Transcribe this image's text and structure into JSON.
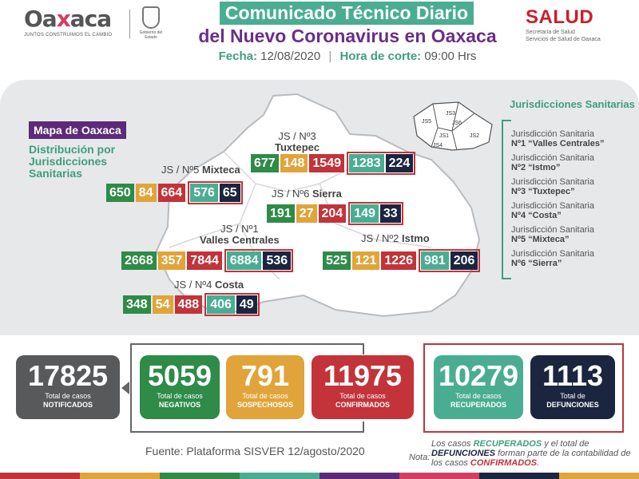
{
  "header": {
    "logo_word_pre": "Oa",
    "logo_word_x": "x",
    "logo_word_post": "aca",
    "logo_slogan": "JUNTOS CONSTRUIMOS EL CAMBIO",
    "seal_text": "Gobierno del Estado",
    "title_line1": "Comunicado Técnico Diario",
    "title_line2": "del Nuevo Coronavirus en Oaxaca",
    "date_label": "Fecha:",
    "date_value": "12/08/2020",
    "cut_label": "Hora de corte:",
    "cut_value": "09:00 Hrs",
    "salud_word": "SALUD",
    "salud_sub1": "Secretaría de Salud",
    "salud_sub2": "Servicios de Salud de Oaxaca"
  },
  "map": {
    "label": "Mapa de Oaxaca",
    "subtitle": "Distribución por Jurisdicciones Sanitarias",
    "mini_labels": [
      "JS5",
      "JS3",
      "JS6",
      "JS1",
      "JS4",
      "JS2"
    ]
  },
  "jurisdictions": {
    "title": "Jurisdicciones Sanitarias",
    "items": [
      {
        "prefix": "Jurisdicción Sanitaria",
        "name": "Nº1 “Valles Centrales”"
      },
      {
        "prefix": "Jurisdicción Sanitaria",
        "name": "Nº2 “Istmo”"
      },
      {
        "prefix": "Jurisdicción Sanitaria",
        "name": "Nº3 “Tuxtepec”"
      },
      {
        "prefix": "Jurisdicción Sanitaria",
        "name": "Nº4 “Costa”"
      },
      {
        "prefix": "Jurisdicción Sanitaria",
        "name": "Nº5 “Mixteca”"
      },
      {
        "prefix": "Jurisdicción Sanitaria",
        "name": "Nº6 “Sierra”"
      }
    ]
  },
  "regions": {
    "tuxtepec": {
      "label1": "JS / Nº3",
      "label2": "Tuxtepec",
      "negativos": "677",
      "sospechosos": "148",
      "confirmados": "1549",
      "recuperados": "1283",
      "defunciones": "224"
    },
    "mixteca": {
      "label1": "JS / Nº5",
      "label2": "Mixteca",
      "negativos": "650",
      "sospechosos": "84",
      "confirmados": "664",
      "recuperados": "576",
      "defunciones": "65"
    },
    "sierra": {
      "label1": "JS / Nº6",
      "label2": "Sierra",
      "negativos": "191",
      "sospechosos": "27",
      "confirmados": "204",
      "recuperados": "149",
      "defunciones": "33"
    },
    "valles": {
      "label1": "JS / Nº1",
      "label2": "Valles Centrales",
      "negativos": "2668",
      "sospechosos": "357",
      "confirmados": "7844",
      "recuperados": "6884",
      "defunciones": "536"
    },
    "istmo": {
      "label1": "JS / Nº2",
      "label2": "Istmo",
      "negativos": "525",
      "sospechosos": "121",
      "confirmados": "1226",
      "recuperados": "981",
      "defunciones": "206"
    },
    "costa": {
      "label1": "JS / Nº4",
      "label2": "Costa",
      "negativos": "348",
      "sospechosos": "54",
      "confirmados": "488",
      "recuperados": "406",
      "defunciones": "49"
    }
  },
  "summary": {
    "notificados": {
      "value": "17825",
      "label1": "Total de casos",
      "label2": "NOTIFICADOS"
    },
    "negativos": {
      "value": "5059",
      "label1": "Total de casos",
      "label2": "NEGATIVOS"
    },
    "sospechosos": {
      "value": "791",
      "label1": "Total de casos",
      "label2": "SOSPECHOSOS"
    },
    "confirmados": {
      "value": "11975",
      "label1": "Total de casos",
      "label2": "CONFIRMADOS"
    },
    "recuperados": {
      "value": "10279",
      "label1": "Total de casos",
      "label2": "RECUPERADOS"
    },
    "defunciones": {
      "value": "1113",
      "label1": "Total de",
      "label2": "DEFUNCIONES"
    }
  },
  "footer": {
    "source": "Fuente: Plataforma SISVER 12/agosto/2020",
    "note_label": "Nota:",
    "note_p1": "Los casos ",
    "note_rec": "RECUPERADOS",
    "note_p2": " y el total de ",
    "note_def": "DEFUNCIONES",
    "note_p3": " forman parte de la contabilidad de los casos ",
    "note_conf": "CONFIRMADOS",
    "note_p4": "."
  },
  "colors": {
    "green": "#2e8b48",
    "yellow": "#e1a43a",
    "red": "#c2333a",
    "teal": "#4aad91",
    "navy": "#1b2540",
    "purple": "#5d2a7a",
    "gray": "#58595b"
  }
}
